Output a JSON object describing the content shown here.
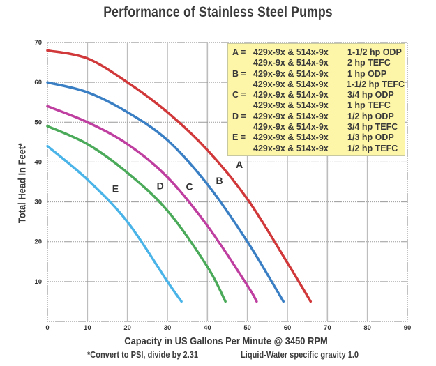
{
  "chart_data": {
    "type": "line",
    "title": "Performance of Stainless Steel Pumps",
    "xlabel": "Capacity in US Gallons Per Minute @ 3450 RPM",
    "ylabel": "Total Head In Feet*",
    "xlim": [
      0,
      90
    ],
    "ylim": [
      0,
      70
    ],
    "xticks": [
      0,
      10,
      20,
      30,
      40,
      50,
      60,
      70,
      80,
      90
    ],
    "yticks": [
      10,
      20,
      30,
      40,
      50,
      60,
      70
    ],
    "grid": true,
    "legend_position": "top-right",
    "footnotes": [
      "*Convert to PSI, divide by 2.31",
      "Liquid-Water specific gravity 1.0"
    ],
    "series": [
      {
        "name": "A",
        "color": "#d0383a",
        "x": [
          0,
          10,
          20,
          30,
          40,
          50,
          60,
          65.8
        ],
        "y": [
          68,
          66,
          60,
          52.5,
          43,
          30.7,
          14.7,
          5
        ],
        "label_at": [
          48,
          38.5
        ]
      },
      {
        "name": "B",
        "color": "#3a7fc4",
        "x": [
          0,
          10,
          20,
          30,
          40,
          50,
          59
        ],
        "y": [
          60,
          57.5,
          52.5,
          45.5,
          34.4,
          20,
          5
        ],
        "label_at": [
          43,
          34.5
        ]
      },
      {
        "name": "C",
        "color": "#bf3fa0",
        "x": [
          0,
          10,
          20,
          30,
          40,
          50,
          52.3
        ],
        "y": [
          54,
          50,
          44.5,
          36.2,
          24,
          9,
          5
        ],
        "label_at": [
          35.5,
          33
        ]
      },
      {
        "name": "D",
        "color": "#4aaa5a",
        "x": [
          0,
          10,
          20,
          30,
          40,
          44.5
        ],
        "y": [
          49,
          44.5,
          37.3,
          27.8,
          13.7,
          5
        ],
        "label_at": [
          28.2,
          33.2
        ]
      },
      {
        "name": "E",
        "color": "#4ab4e8",
        "x": [
          0,
          10,
          20,
          30,
          33.5
        ],
        "y": [
          44,
          35.6,
          25,
          10,
          5
        ],
        "label_at": [
          17,
          32.5
        ]
      }
    ],
    "legend": [
      {
        "key": "A =",
        "model": "429x-9x & 514x-9x",
        "hp": "1-1/2 hp ODP"
      },
      {
        "key": "",
        "model": "429x-9x & 514x-9x",
        "hp": "2 hp TEFC"
      },
      {
        "key": "B =",
        "model": "429x-9x & 514x-9x",
        "hp": "1 hp ODP"
      },
      {
        "key": "",
        "model": "429x-9x & 514x-9x",
        "hp": "1-1/2 hp TEFC"
      },
      {
        "key": "C =",
        "model": "429x-9x & 514x-9x",
        "hp": "3/4 hp ODP"
      },
      {
        "key": "",
        "model": "429x-9x & 514x-9x",
        "hp": "1 hp TEFC"
      },
      {
        "key": "D =",
        "model": "429x-9x & 514x-9x",
        "hp": "1/2 hp ODP"
      },
      {
        "key": "",
        "model": "429x-9x & 514x-9x",
        "hp": "3/4 hp TEFC"
      },
      {
        "key": "E =",
        "model": "429x-9x & 514x-9x",
        "hp": "1/3 hp ODP"
      },
      {
        "key": "",
        "model": "429x-9x & 514x-9x",
        "hp": "1/2 hp TEFC"
      }
    ]
  }
}
